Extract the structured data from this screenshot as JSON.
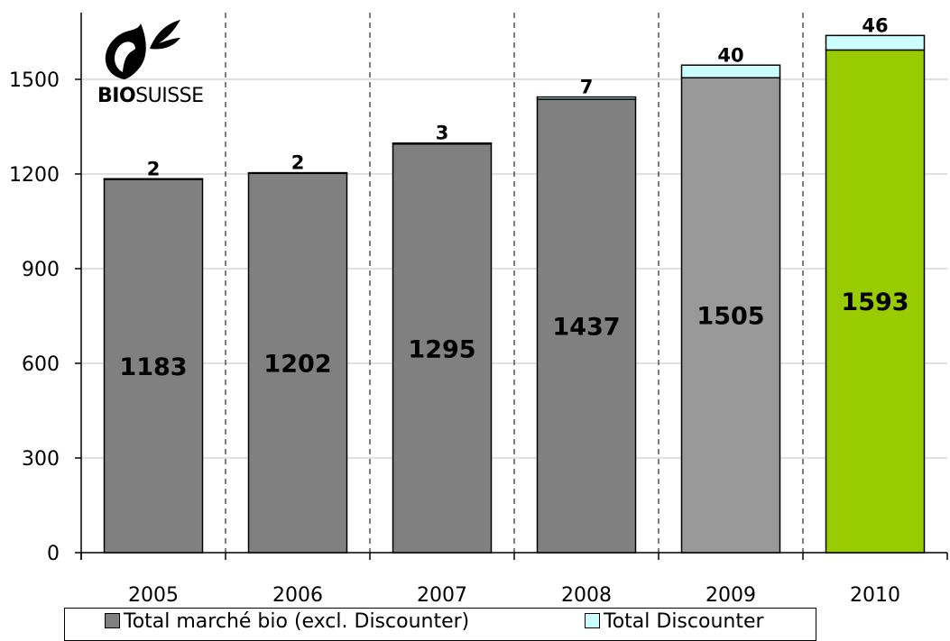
{
  "chart_data": {
    "type": "bar",
    "stacked": true,
    "categories": [
      "2005",
      "2006",
      "2007",
      "2008",
      "2009",
      "2010"
    ],
    "series": [
      {
        "name": "Total marché bio (excl. Discounter)",
        "values": [
          1183,
          1202,
          1295,
          1437,
          1505,
          1593
        ],
        "colors": [
          "#808080",
          "#808080",
          "#808080",
          "#808080",
          "#999999",
          "#99cc00"
        ]
      },
      {
        "name": "Total Discounter",
        "values": [
          2,
          2,
          3,
          7,
          40,
          46
        ],
        "color": "#ccffff"
      }
    ],
    "yticks": [
      0,
      300,
      600,
      900,
      1200,
      1500
    ],
    "ylim": [
      0,
      1650
    ],
    "grid": true,
    "legend_position": "bottom"
  },
  "logo": {
    "text_bold": "BIO",
    "text_regular": "SUISSE"
  },
  "legend": {
    "item1": "Total marché bio (excl. Discounter)",
    "item2": "Total Discounter"
  }
}
